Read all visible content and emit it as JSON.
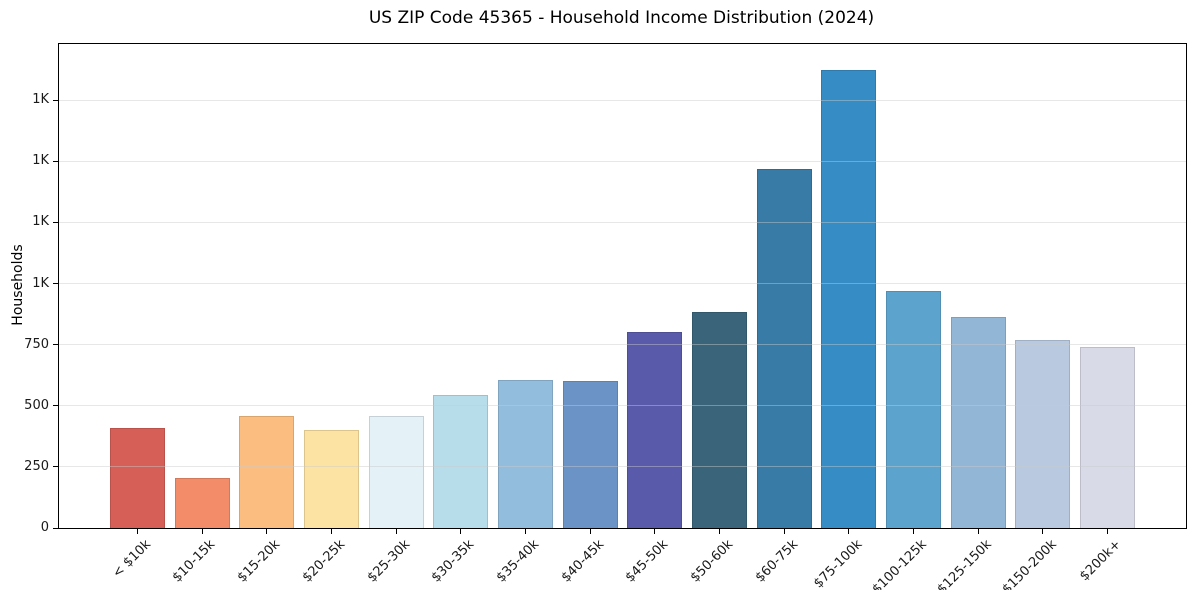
{
  "chart_data": {
    "type": "bar",
    "title": "US ZIP Code 45365 - Household Income Distribution (2024)",
    "xlabel": "",
    "ylabel": "Households",
    "categories": [
      "< $10k",
      "$10-15k",
      "$15-20k",
      "$20-25k",
      "$25-30k",
      "$30-35k",
      "$35-40k",
      "$40-45k",
      "$45-50k",
      "$50-60k",
      "$60-75k",
      "$75-100k",
      "$100-125k",
      "$125-150k",
      "$150-200k",
      "$200k+"
    ],
    "values": [
      410,
      205,
      460,
      400,
      460,
      545,
      605,
      600,
      800,
      885,
      1470,
      1875,
      970,
      865,
      770,
      740
    ],
    "bar_colors": [
      "#d65f57",
      "#f28c69",
      "#fbbd80",
      "#fde3a3",
      "#e4f1f7",
      "#b7dcea",
      "#93bddc",
      "#6b93c6",
      "#5a5aaa",
      "#39647a",
      "#377ba6",
      "#368dc5",
      "#5ca4ce",
      "#92b6d5",
      "#b8c9e0",
      "#d8dae7"
    ],
    "ylim": [
      0,
      1980
    ],
    "yticks": [
      {
        "value": 0,
        "label": "0"
      },
      {
        "value": 250,
        "label": "250"
      },
      {
        "value": 500,
        "label": "500"
      },
      {
        "value": 750,
        "label": "750"
      },
      {
        "value": 1000,
        "label": "1K"
      },
      {
        "value": 1250,
        "label": "1K"
      },
      {
        "value": 1500,
        "label": "1K"
      },
      {
        "value": 1750,
        "label": "1K"
      }
    ],
    "grid": "horizontal",
    "legend": "none",
    "colors": {
      "background": "#ffffff",
      "spine": "#000000",
      "gridline": "#e7e7e7",
      "text": "#1a1a1a"
    }
  }
}
